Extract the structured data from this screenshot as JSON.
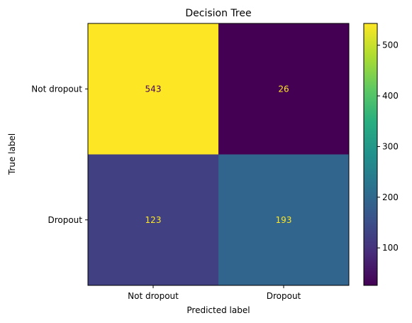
{
  "chart_data": {
    "type": "heatmap",
    "title": "Decision Tree",
    "xlabel": "Predicted label",
    "ylabel": "True label",
    "x_categories": [
      "Not dropout",
      "Dropout"
    ],
    "y_categories": [
      "Not dropout",
      "Dropout"
    ],
    "values": [
      [
        543,
        26
      ],
      [
        123,
        193
      ]
    ],
    "colormap": "viridis",
    "colorbar": {
      "range": [
        26,
        543
      ],
      "ticks": [
        100,
        200,
        300,
        400,
        500
      ]
    },
    "cell_label_colors": {
      "on_dark": "#fde725",
      "on_light": "#440154"
    },
    "grid": false
  }
}
